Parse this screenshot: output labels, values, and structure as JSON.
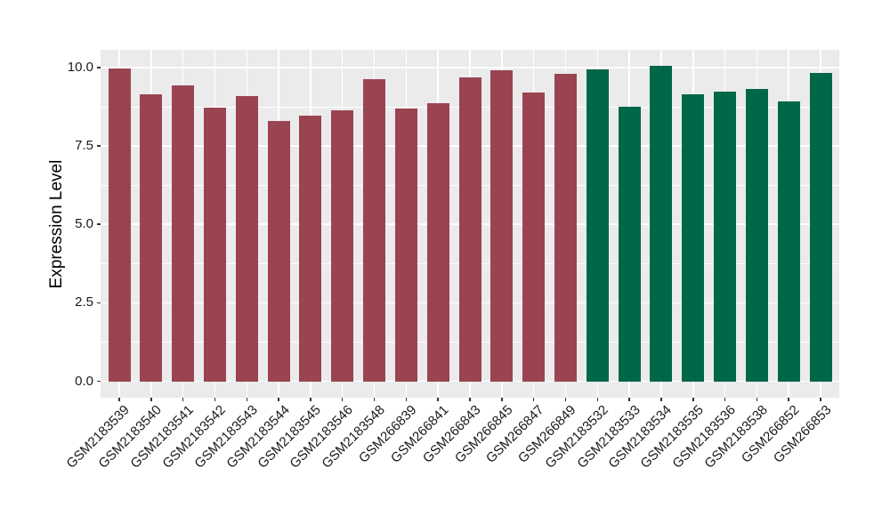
{
  "chart_data": {
    "type": "bar",
    "title": "",
    "xlabel": "",
    "ylabel": "Expression Level",
    "categories": [
      "GSM2183539",
      "GSM2183540",
      "GSM2183541",
      "GSM2183542",
      "GSM2183543",
      "GSM2183544",
      "GSM2183545",
      "GSM2183546",
      "GSM2183548",
      "GSM266839",
      "GSM266841",
      "GSM266843",
      "GSM266845",
      "GSM266847",
      "GSM266849",
      "GSM2183532",
      "GSM2183533",
      "GSM2183534",
      "GSM2183535",
      "GSM2183536",
      "GSM2183538",
      "GSM266852",
      "GSM266853"
    ],
    "values": [
      9.97,
      9.14,
      9.43,
      8.72,
      9.08,
      8.3,
      8.46,
      8.62,
      9.64,
      8.7,
      8.86,
      9.68,
      9.91,
      9.21,
      9.8,
      9.94,
      8.76,
      10.05,
      9.13,
      9.22,
      9.32,
      8.93,
      9.82
    ],
    "bar_colors": [
      "#9A4452",
      "#9A4452",
      "#9A4452",
      "#9A4452",
      "#9A4452",
      "#9A4452",
      "#9A4452",
      "#9A4452",
      "#9A4452",
      "#9A4452",
      "#9A4452",
      "#9A4452",
      "#9A4452",
      "#9A4452",
      "#9A4452",
      "#006748",
      "#006748",
      "#006748",
      "#006748",
      "#006748",
      "#006748",
      "#006748",
      "#006748"
    ],
    "yticks": [
      0.0,
      2.5,
      5.0,
      7.5,
      10.0
    ],
    "ytick_labels": [
      "0.0",
      "2.5",
      "5.0",
      "7.5",
      "10.0"
    ],
    "minor_yticks": [
      1.25,
      3.75,
      6.25,
      8.75
    ],
    "ylim": [
      -0.52,
      10.56
    ],
    "grid": true,
    "legend": "none",
    "panel_background": "#EBEBEB",
    "gridline_color": "#FFFFFF",
    "tick_color": "#333333"
  }
}
